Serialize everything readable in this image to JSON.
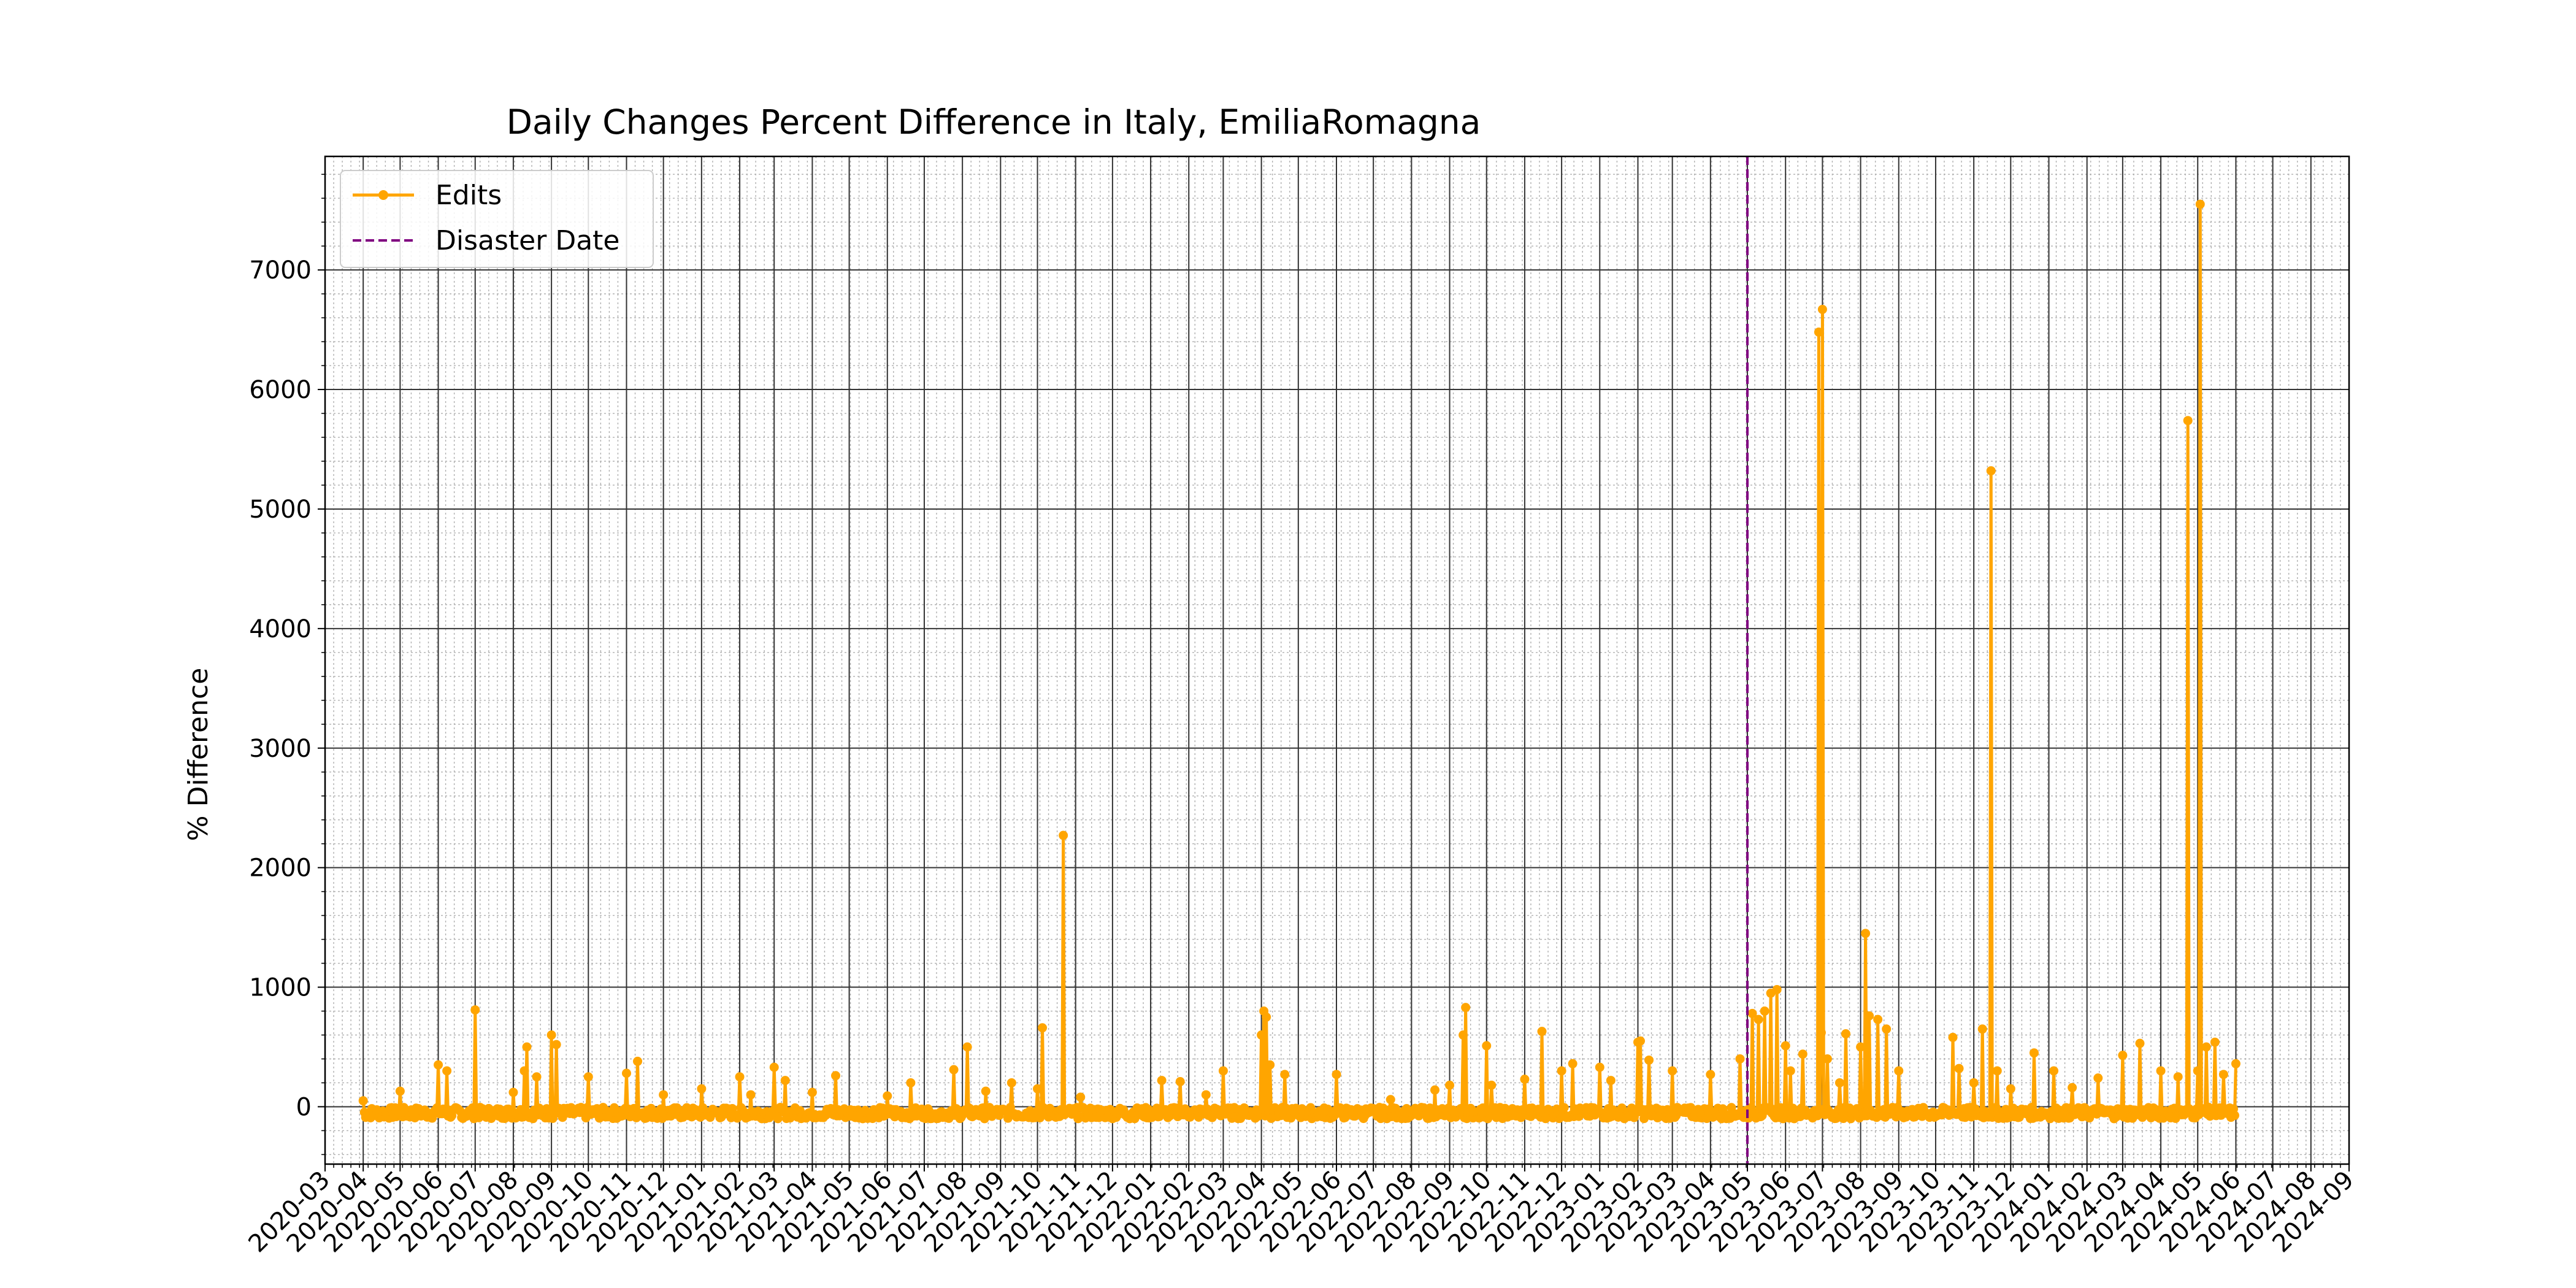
{
  "chart_data": {
    "type": "line",
    "title": "Daily Changes Percent Difference in Italy, EmiliaRomagna",
    "xlabel": "",
    "ylabel": "% Difference",
    "x_range": [
      "2020-03-01",
      "2024-09-01"
    ],
    "ylim": [
      -480,
      7950
    ],
    "y_ticks": [
      0,
      1000,
      2000,
      3000,
      4000,
      5000,
      6000,
      7000
    ],
    "x_ticks": [
      "2020-03",
      "2020-04",
      "2020-05",
      "2020-06",
      "2020-07",
      "2020-08",
      "2020-09",
      "2020-10",
      "2020-11",
      "2020-12",
      "2021-01",
      "2021-02",
      "2021-03",
      "2021-04",
      "2021-05",
      "2021-06",
      "2021-07",
      "2021-08",
      "2021-09",
      "2021-10",
      "2021-11",
      "2021-12",
      "2022-01",
      "2022-02",
      "2022-03",
      "2022-04",
      "2022-05",
      "2022-06",
      "2022-07",
      "2022-08",
      "2022-09",
      "2022-10",
      "2022-11",
      "2022-12",
      "2023-01",
      "2023-02",
      "2023-03",
      "2023-04",
      "2023-05",
      "2023-06",
      "2023-07",
      "2023-08",
      "2023-09",
      "2023-10",
      "2023-11",
      "2023-12",
      "2024-01",
      "2024-02",
      "2024-03",
      "2024-04",
      "2024-05",
      "2024-06",
      "2024-07",
      "2024-08",
      "2024-09"
    ],
    "grid": true,
    "legend_position": "top-left",
    "legend": [
      "Edits",
      "Disaster Date"
    ],
    "disaster_date": "2023-05-01",
    "series": [
      {
        "name": "Edits",
        "color": "#FFA500",
        "baseline_range": [
          "2020-04-01",
          "2024-06-01"
        ],
        "points": [
          [
            "2020-04-01",
            50
          ],
          [
            "2020-04-15",
            -80
          ],
          [
            "2020-05-01",
            130
          ],
          [
            "2020-05-20",
            -60
          ],
          [
            "2020-06-01",
            350
          ],
          [
            "2020-06-08",
            300
          ],
          [
            "2020-06-20",
            -90
          ],
          [
            "2020-07-01",
            810
          ],
          [
            "2020-07-15",
            -70
          ],
          [
            "2020-08-01",
            120
          ],
          [
            "2020-08-10",
            300
          ],
          [
            "2020-08-12",
            500
          ],
          [
            "2020-08-20",
            250
          ],
          [
            "2020-09-01",
            600
          ],
          [
            "2020-09-05",
            520
          ],
          [
            "2020-09-15",
            -50
          ],
          [
            "2020-10-01",
            250
          ],
          [
            "2020-10-20",
            -80
          ],
          [
            "2020-11-01",
            280
          ],
          [
            "2020-11-10",
            380
          ],
          [
            "2020-12-01",
            100
          ],
          [
            "2021-01-01",
            150
          ],
          [
            "2021-01-20",
            -60
          ],
          [
            "2021-02-01",
            250
          ],
          [
            "2021-02-10",
            100
          ],
          [
            "2021-03-01",
            330
          ],
          [
            "2021-03-10",
            220
          ],
          [
            "2021-04-01",
            120
          ],
          [
            "2021-04-20",
            260
          ],
          [
            "2021-05-15",
            -70
          ],
          [
            "2021-06-01",
            90
          ],
          [
            "2021-06-20",
            200
          ],
          [
            "2021-07-10",
            -60
          ],
          [
            "2021-07-25",
            310
          ],
          [
            "2021-08-05",
            500
          ],
          [
            "2021-08-20",
            130
          ],
          [
            "2021-09-10",
            200
          ],
          [
            "2021-10-01",
            150
          ],
          [
            "2021-10-05",
            660
          ],
          [
            "2021-10-15",
            -40
          ],
          [
            "2021-10-22",
            2270
          ],
          [
            "2021-11-05",
            80
          ],
          [
            "2021-11-20",
            -90
          ],
          [
            "2021-12-15",
            -100
          ],
          [
            "2022-01-10",
            220
          ],
          [
            "2022-01-25",
            210
          ],
          [
            "2022-02-15",
            100
          ],
          [
            "2022-03-01",
            300
          ],
          [
            "2022-03-20",
            -60
          ],
          [
            "2022-04-01",
            600
          ],
          [
            "2022-04-03",
            800
          ],
          [
            "2022-04-05",
            750
          ],
          [
            "2022-04-08",
            350
          ],
          [
            "2022-04-20",
            270
          ],
          [
            "2022-05-10",
            -80
          ],
          [
            "2022-06-01",
            270
          ],
          [
            "2022-06-20",
            -60
          ],
          [
            "2022-07-15",
            60
          ],
          [
            "2022-08-01",
            -70
          ],
          [
            "2022-08-20",
            140
          ],
          [
            "2022-09-01",
            180
          ],
          [
            "2022-09-12",
            600
          ],
          [
            "2022-09-14",
            830
          ],
          [
            "2022-10-01",
            510
          ],
          [
            "2022-10-05",
            180
          ],
          [
            "2022-11-01",
            230
          ],
          [
            "2022-11-15",
            630
          ],
          [
            "2022-12-01",
            300
          ],
          [
            "2022-12-10",
            360
          ],
          [
            "2023-01-01",
            330
          ],
          [
            "2023-01-10",
            220
          ],
          [
            "2023-02-01",
            540
          ],
          [
            "2023-02-03",
            550
          ],
          [
            "2023-02-10",
            390
          ],
          [
            "2023-03-01",
            300
          ],
          [
            "2023-03-15",
            -50
          ],
          [
            "2023-04-01",
            270
          ],
          [
            "2023-04-10",
            -100
          ],
          [
            "2023-04-25",
            400
          ],
          [
            "2023-05-05",
            780
          ],
          [
            "2023-05-10",
            730
          ],
          [
            "2023-05-15",
            800
          ],
          [
            "2023-05-20",
            950
          ],
          [
            "2023-05-25",
            980
          ],
          [
            "2023-06-01",
            510
          ],
          [
            "2023-06-05",
            300
          ],
          [
            "2023-06-15",
            440
          ],
          [
            "2023-06-28",
            6480
          ],
          [
            "2023-06-30",
            620
          ],
          [
            "2023-07-01",
            6670
          ],
          [
            "2023-07-05",
            400
          ],
          [
            "2023-07-15",
            200
          ],
          [
            "2023-07-20",
            610
          ],
          [
            "2023-08-01",
            500
          ],
          [
            "2023-08-05",
            1450
          ],
          [
            "2023-08-08",
            760
          ],
          [
            "2023-08-15",
            730
          ],
          [
            "2023-08-22",
            650
          ],
          [
            "2023-09-01",
            300
          ],
          [
            "2023-09-15",
            -60
          ],
          [
            "2023-10-15",
            580
          ],
          [
            "2023-10-20",
            320
          ],
          [
            "2023-11-01",
            200
          ],
          [
            "2023-11-08",
            650
          ],
          [
            "2023-11-15",
            5320
          ],
          [
            "2023-11-20",
            300
          ],
          [
            "2023-12-01",
            150
          ],
          [
            "2023-12-20",
            450
          ],
          [
            "2024-01-05",
            300
          ],
          [
            "2024-01-20",
            160
          ],
          [
            "2024-02-10",
            240
          ],
          [
            "2024-03-01",
            430
          ],
          [
            "2024-03-15",
            530
          ],
          [
            "2024-04-01",
            300
          ],
          [
            "2024-04-15",
            250
          ],
          [
            "2024-04-23",
            5740
          ],
          [
            "2024-05-01",
            300
          ],
          [
            "2024-05-03",
            7550
          ],
          [
            "2024-05-08",
            500
          ],
          [
            "2024-05-15",
            540
          ],
          [
            "2024-05-22",
            270
          ],
          [
            "2024-06-01",
            360
          ]
        ]
      }
    ]
  }
}
